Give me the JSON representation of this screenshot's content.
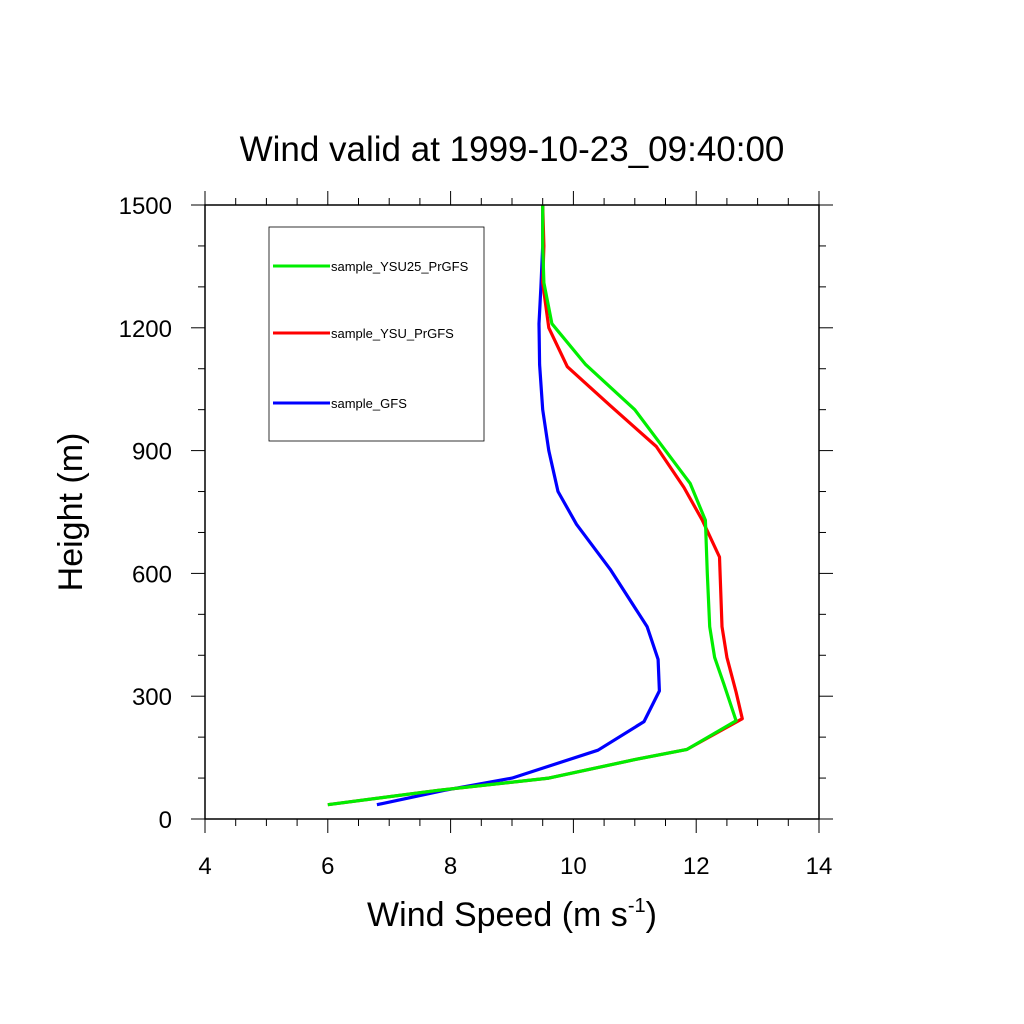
{
  "chart_data": {
    "type": "line",
    "title": "Wind valid at 1999-10-23_09:40:00",
    "xlabel": "Wind Speed (m s",
    "xlabel_sup": "-1",
    "xlabel_end": ")",
    "ylabel": "Height (m)",
    "xlim": [
      4,
      14
    ],
    "ylim": [
      0,
      1500
    ],
    "x_ticks": [
      4,
      6,
      8,
      10,
      12,
      14
    ],
    "y_ticks": [
      0,
      300,
      600,
      900,
      1200,
      1500
    ],
    "grid": false,
    "legend_position": "top-left",
    "series": [
      {
        "name": "sample_YSU25_PrGFS",
        "color": "#00ee00",
        "points": [
          [
            6.0,
            35
          ],
          [
            7.8,
            70
          ],
          [
            9.6,
            100
          ],
          [
            11.0,
            145
          ],
          [
            11.85,
            170
          ],
          [
            12.65,
            240
          ],
          [
            12.45,
            330
          ],
          [
            12.3,
            395
          ],
          [
            12.22,
            470
          ],
          [
            12.18,
            600
          ],
          [
            12.15,
            730
          ],
          [
            11.9,
            820
          ],
          [
            11.5,
            900
          ],
          [
            11.0,
            1000
          ],
          [
            10.2,
            1110
          ],
          [
            9.65,
            1210
          ],
          [
            9.52,
            1310
          ],
          [
            9.5,
            1400
          ],
          [
            9.5,
            1500
          ]
        ]
      },
      {
        "name": "sample_YSU_PrGFS",
        "color": "#ff0000",
        "points": [
          [
            6.0,
            35
          ],
          [
            7.8,
            70
          ],
          [
            9.6,
            100
          ],
          [
            11.0,
            145
          ],
          [
            11.85,
            170
          ],
          [
            12.75,
            245
          ],
          [
            12.65,
            310
          ],
          [
            12.5,
            395
          ],
          [
            12.42,
            470
          ],
          [
            12.38,
            640
          ],
          [
            12.1,
            730
          ],
          [
            11.8,
            810
          ],
          [
            11.35,
            910
          ],
          [
            10.6,
            1010
          ],
          [
            9.9,
            1105
          ],
          [
            9.6,
            1200
          ],
          [
            9.5,
            1310
          ],
          [
            9.52,
            1400
          ],
          [
            9.5,
            1500
          ]
        ]
      },
      {
        "name": "sample_GFS",
        "color": "#0000ff",
        "points": [
          [
            6.8,
            35
          ],
          [
            7.9,
            70
          ],
          [
            9.0,
            100
          ],
          [
            10.4,
            168
          ],
          [
            11.15,
            238
          ],
          [
            11.4,
            313
          ],
          [
            11.38,
            390
          ],
          [
            11.2,
            470
          ],
          [
            10.6,
            610
          ],
          [
            10.05,
            720
          ],
          [
            9.75,
            800
          ],
          [
            9.6,
            900
          ],
          [
            9.5,
            1000
          ],
          [
            9.45,
            1110
          ],
          [
            9.44,
            1210
          ],
          [
            9.47,
            1300
          ],
          [
            9.5,
            1400
          ],
          [
            9.5,
            1500
          ]
        ]
      }
    ]
  }
}
